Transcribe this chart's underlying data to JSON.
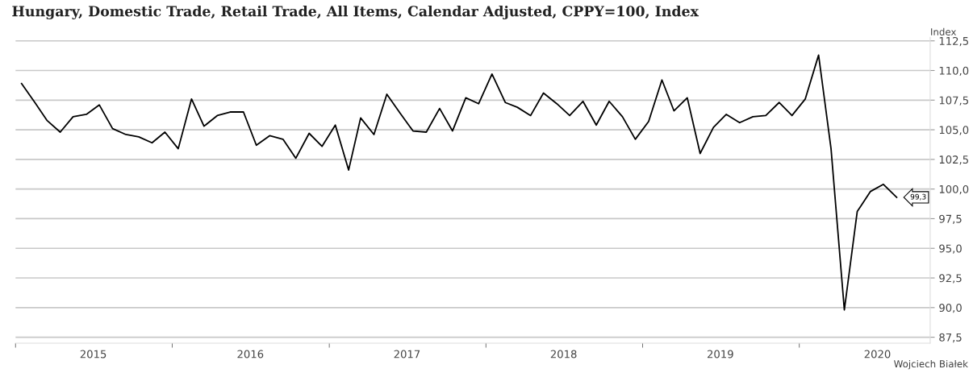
{
  "chart_data": {
    "type": "line",
    "title": "Hungary, Domestic Trade, Retail Trade, All Items, Calendar Adjusted, CPPY=100, Index",
    "ylabel": "Index",
    "x": [
      "2015-01-15",
      "2015-02-15",
      "2015-03-15",
      "2015-04-15",
      "2015-05-15",
      "2015-06-15",
      "2015-07-15",
      "2015-08-15",
      "2015-09-15",
      "2015-10-15",
      "2015-11-15",
      "2015-12-15",
      "2016-01-15",
      "2016-02-15",
      "2016-03-15",
      "2016-04-15",
      "2016-05-15",
      "2016-06-15",
      "2016-07-15",
      "2016-08-15",
      "2016-09-15",
      "2016-10-15",
      "2016-11-15",
      "2016-12-15",
      "2017-01-15",
      "2017-02-15",
      "2017-03-15",
      "2017-04-15",
      "2017-05-15",
      "2017-06-15",
      "2017-07-15",
      "2017-08-15",
      "2017-09-15",
      "2017-10-15",
      "2017-11-15",
      "2017-12-15",
      "2018-01-15",
      "2018-02-15",
      "2018-03-15",
      "2018-04-15",
      "2018-05-15",
      "2018-06-15",
      "2018-07-15",
      "2018-08-15",
      "2018-09-15",
      "2018-10-15",
      "2018-11-15",
      "2018-12-15",
      "2019-01-15",
      "2019-02-15",
      "2019-03-15",
      "2019-04-15",
      "2019-05-15",
      "2019-06-15",
      "2019-07-15",
      "2019-08-15",
      "2019-09-15",
      "2019-10-15",
      "2019-11-15",
      "2019-12-15",
      "2020-01-15",
      "2020-02-15",
      "2020-03-15",
      "2020-04-15",
      "2020-05-15",
      "2020-06-15",
      "2020-07-15",
      "2020-08-15"
    ],
    "series": [
      {
        "color": "#000000",
        "values": [
          108.9,
          107.3,
          105.8,
          104.8,
          106.1,
          106.3,
          107.1,
          105.1,
          104.6,
          104.4,
          103.9,
          104.8,
          103.4,
          107.6,
          105.3,
          106.2,
          106.5,
          106.5,
          103.7,
          104.5,
          104.2,
          102.6,
          104.7,
          103.6,
          105.4,
          101.6,
          106.0,
          104.6,
          108.0,
          106.4,
          104.9,
          104.8,
          106.8,
          104.9,
          107.7,
          107.2,
          109.7,
          107.3,
          106.9,
          106.2,
          108.1,
          107.2,
          106.2,
          107.4,
          105.4,
          107.4,
          106.1,
          104.2,
          105.7,
          109.2,
          106.6,
          107.7,
          103.0,
          105.2,
          106.3,
          105.6,
          106.1,
          106.2,
          107.3,
          106.2,
          107.6,
          111.3,
          103.4,
          89.8,
          98.1,
          99.8,
          100.4,
          99.3
        ]
      }
    ],
    "xlim": [
      "2015-01-01",
      "2020-11-01"
    ],
    "xticks": [
      {
        "value": "2015-01-01",
        "label": null
      },
      {
        "value": "2015-07-01",
        "label": "2015"
      },
      {
        "value": "2016-01-01",
        "label": null
      },
      {
        "value": "2016-07-01",
        "label": "2016"
      },
      {
        "value": "2017-01-01",
        "label": null
      },
      {
        "value": "2017-07-01",
        "label": "2017"
      },
      {
        "value": "2018-01-01",
        "label": null
      },
      {
        "value": "2018-07-01",
        "label": "2018"
      },
      {
        "value": "2019-01-01",
        "label": null
      },
      {
        "value": "2019-07-01",
        "label": "2019"
      },
      {
        "value": "2020-01-01",
        "label": null
      },
      {
        "value": "2020-07-01",
        "label": "2020"
      }
    ],
    "ylim": [
      87.0,
      112.8
    ],
    "yticks": [
      {
        "value": 87.5,
        "label": "87,5"
      },
      {
        "value": 90,
        "label": "90,0"
      },
      {
        "value": 92.5,
        "label": "92,5"
      },
      {
        "value": 95,
        "label": "95,0"
      },
      {
        "value": 97.5,
        "label": "97,5"
      },
      {
        "value": 100,
        "label": "100,0"
      },
      {
        "value": 102.5,
        "label": "102,5"
      },
      {
        "value": 105,
        "label": "105,0"
      },
      {
        "value": 107.5,
        "label": "107,5"
      },
      {
        "value": 110,
        "label": "110,0"
      },
      {
        "value": 112.5,
        "label": "112,5"
      }
    ],
    "grid": "y",
    "legend": false,
    "annotations": [
      {
        "text": "99,3",
        "x": "2020-08-15",
        "y": 99.3
      },
      "Wojciech Białek"
    ]
  }
}
